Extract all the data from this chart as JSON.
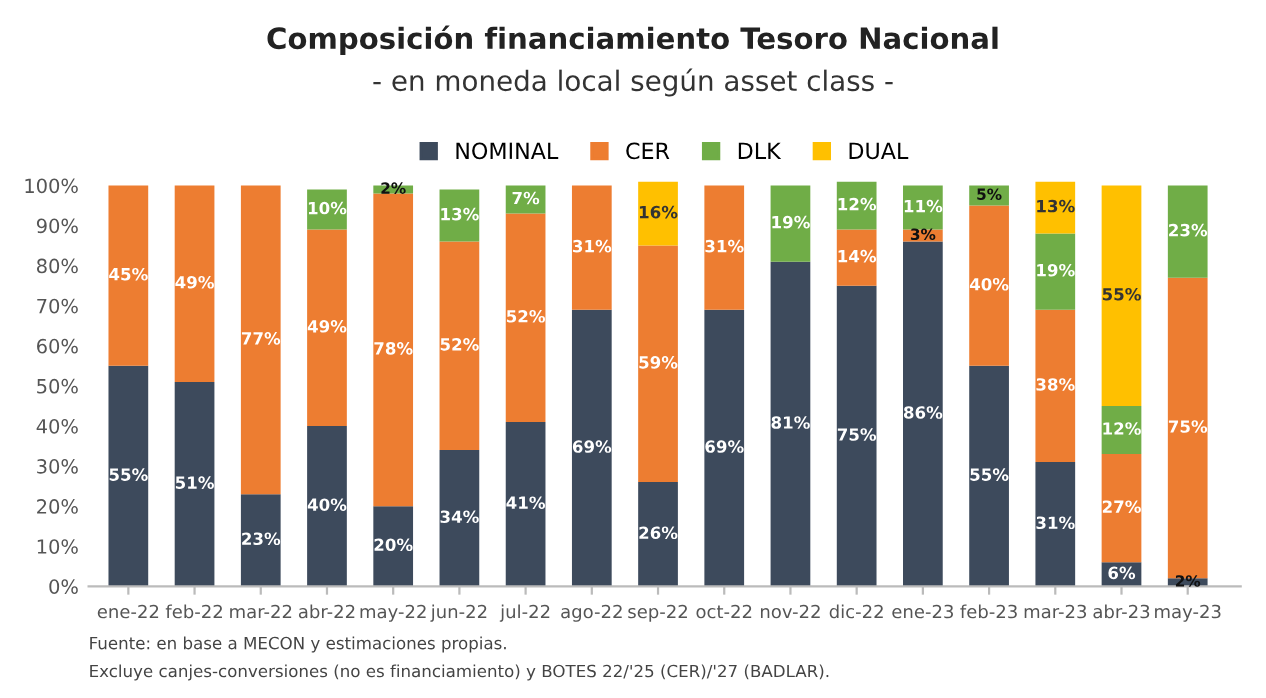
{
  "chart_data": {
    "type": "bar",
    "stacked": true,
    "title": "Composición financiamiento Tesoro Nacional",
    "subtitle": "- en moneda local según asset class -",
    "categories": [
      "ene-22",
      "feb-22",
      "mar-22",
      "abr-22",
      "may-22",
      "jun-22",
      "jul-22",
      "ago-22",
      "sep-22",
      "oct-22",
      "nov-22",
      "dic-22",
      "ene-23",
      "feb-23",
      "mar-23",
      "abr-23",
      "may-23"
    ],
    "series": [
      {
        "name": "NOMINAL",
        "color": "#3d4a5c",
        "values": [
          55,
          51,
          23,
          40,
          20,
          34,
          41,
          69,
          26,
          69,
          81,
          75,
          86,
          55,
          31,
          6,
          2
        ],
        "value_labels": [
          "55%",
          "51%",
          "23%",
          "40%",
          "20%",
          "34%",
          "41%",
          "69%",
          "26%",
          "69%",
          "81%",
          "75%",
          "86%",
          "55%",
          "31%",
          "6%",
          "2%"
        ]
      },
      {
        "name": "CER",
        "color": "#ed7d31",
        "values": [
          45,
          49,
          77,
          49,
          78,
          52,
          52,
          31,
          59,
          31,
          null,
          14,
          3,
          40,
          38,
          27,
          75
        ],
        "value_labels": [
          "45%",
          "49%",
          "77%",
          "49%",
          "78%",
          "52%",
          "52%",
          "31%",
          "59%",
          "31%",
          null,
          "14%",
          "3%",
          "40%",
          "38%",
          "27%",
          "75%"
        ]
      },
      {
        "name": "DLK",
        "color": "#70ad47",
        "values": [
          null,
          null,
          null,
          10,
          2,
          13,
          7,
          null,
          null,
          null,
          19,
          12,
          11,
          5,
          19,
          12,
          23
        ],
        "value_labels": [
          null,
          null,
          null,
          "10%",
          "2%",
          "13%",
          "7%",
          null,
          null,
          null,
          "19%",
          "12%",
          "11%",
          "5%",
          "19%",
          "12%",
          "23%"
        ]
      },
      {
        "name": "DUAL",
        "color": "#ffc000",
        "values": [
          null,
          null,
          null,
          null,
          null,
          null,
          null,
          null,
          16,
          null,
          null,
          null,
          null,
          null,
          13,
          55,
          null
        ],
        "value_labels": [
          null,
          null,
          null,
          null,
          null,
          null,
          null,
          null,
          "16%",
          null,
          null,
          null,
          null,
          null,
          "13%",
          "55%",
          null
        ]
      }
    ],
    "ylim": [
      0,
      101
    ],
    "yticks": [
      {
        "value": 0,
        "label": "0%"
      },
      {
        "value": 10,
        "label": "10%"
      },
      {
        "value": 20,
        "label": "20%"
      },
      {
        "value": 30,
        "label": "30%"
      },
      {
        "value": 40,
        "label": "40%"
      },
      {
        "value": 50,
        "label": "50%"
      },
      {
        "value": 60,
        "label": "60%"
      },
      {
        "value": 70,
        "label": "70%"
      },
      {
        "value": 80,
        "label": "80%"
      },
      {
        "value": 90,
        "label": "90%"
      },
      {
        "value": 100,
        "label": "100%"
      }
    ],
    "grid": false,
    "legend": "top",
    "annotations": [
      "Fuente: en base a MECON y estimaciones propias.",
      "Excluye canjes-conversiones (no es financiamiento) y BOTES 22/'25 (CER)/'27 (BADLAR)."
    ]
  }
}
